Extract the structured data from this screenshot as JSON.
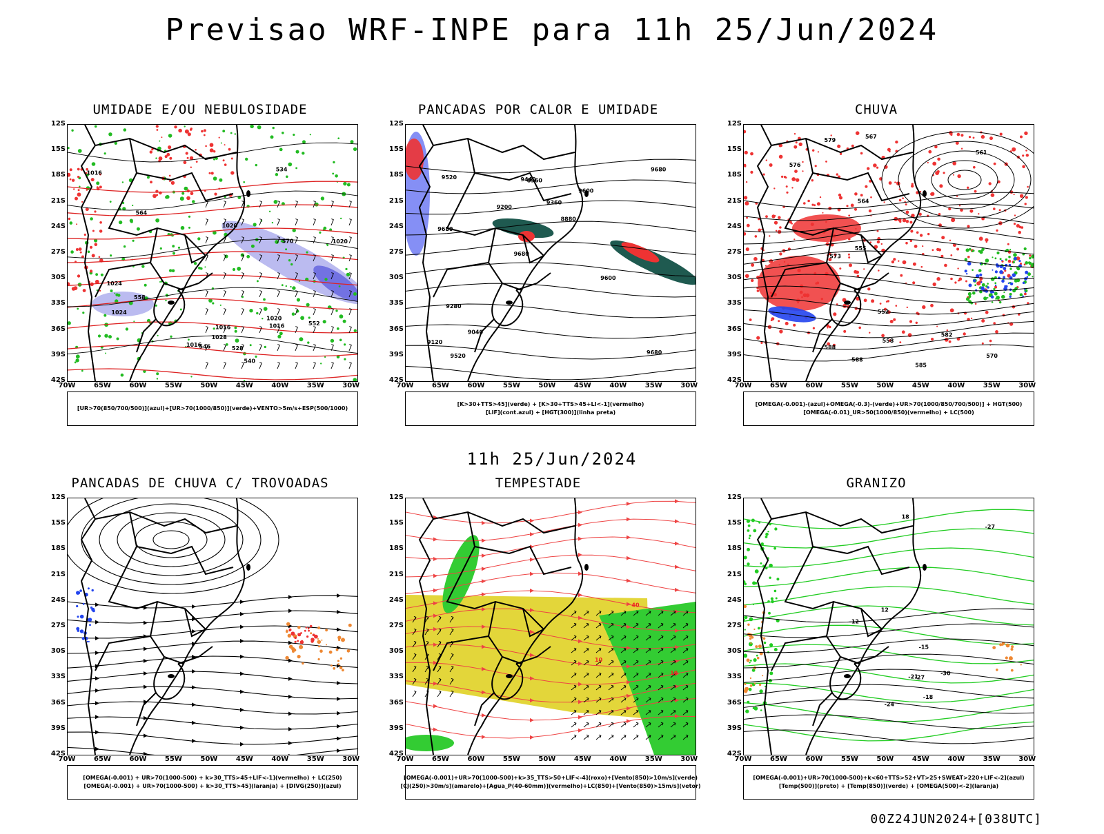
{
  "header": {
    "title": "Previsao WRF-INPE  para 11h 25/Jun/2024",
    "subtitle": "11h 25/Jun/2024",
    "footer": "00Z24JUN2024+[038UTC]"
  },
  "axes": {
    "lat_labels": [
      "12S",
      "15S",
      "18S",
      "21S",
      "24S",
      "27S",
      "30S",
      "33S",
      "36S",
      "39S",
      "42S"
    ],
    "lon_labels": [
      "70W",
      "65W",
      "60W",
      "55W",
      "50W",
      "45W",
      "40W",
      "35W",
      "30W"
    ]
  },
  "panels": [
    {
      "title": "UMIDADE E/OU NEBULOSIDADE",
      "legend": [
        "[UR>70(850/700/500)](azul)+[UR>70(1000/850)](verde)+VENTO>5m/s+ESP(500/1000)"
      ],
      "contour_labels": [
        "1016",
        "1016",
        "1020",
        "1016",
        "1020",
        "1024",
        "1028",
        "1024",
        "570",
        "564",
        "558",
        "552",
        "546",
        "540",
        "534",
        "528",
        "1020",
        "1016"
      ]
    },
    {
      "title": "PANCADAS POR CALOR E UMIDADE",
      "legend": [
        "[K>30+TTS>45](verde) + [K>30+TTS>45+LI<-1](vermelho)",
        "[LIF](cont.azul) + [HGT(300)](linha preta)"
      ],
      "contour_labels": [
        "9680",
        "9680",
        "9680",
        "9680",
        "9600",
        "9520",
        "9440",
        "9360",
        "9280",
        "9200",
        "9120",
        "9040",
        "8960",
        "8880",
        "9600",
        "9520"
      ]
    },
    {
      "title": "CHUVA",
      "legend": [
        "[OMEGA(-0.001)-(azul)+OMEGA(-0.3)-(verde)+UR>70(1000/850/700/500)] + HGT(500)",
        "[OMEGA(-0.01)_UR>50(1000/850)(vermelho) + LC(500)"
      ],
      "contour_labels": [
        "588",
        "585",
        "588",
        "582",
        "579",
        "576",
        "573",
        "570",
        "567",
        "564",
        "561",
        "558",
        "555",
        "552"
      ]
    },
    {
      "title": "PANCADAS DE CHUVA C/ TROVOADAS",
      "legend": [
        "[OMEGA(-0.001) + UR>70(1000-500) + k>30_TTS>45+LIF<-1](vermelho) + LC(250)",
        "[OMEGA(-0.001) + UR>70(1000-500) + k>30_TTS>45](laranja) + [DIVG(250)](azul)"
      ],
      "contour_labels": []
    },
    {
      "title": "TEMPESTADE",
      "legend": [
        "[OMEGA(-0.001)+UR>70(1000-500)+k>35_TTS>50+LIF<-4](roxo)+[Vento(850)>10m/s](verde)",
        "[CJ(250)>30m/s](amarelo)+[Agua_P(40-60mm)](vermelho)+LC(850)+[Vento(850)>15m/s](vetor)"
      ],
      "contour_labels": [
        "10",
        "10",
        "40"
      ]
    },
    {
      "title": "GRANIZO",
      "legend": [
        "[OMEGA(-0.001)+UR>70(1000-500)+k<60+TTS>52+VT>25+SWEAT>220+LIF<-2](azul)",
        "[Temp(500)](preto) + [Temp(850)](verde) + [OMEGA(500)<-2](laranja)"
      ],
      "contour_labels": [
        "18",
        "12",
        "-18",
        "-21",
        "-12",
        "-15",
        "-24",
        "-27",
        "-30",
        "-27"
      ]
    }
  ]
}
